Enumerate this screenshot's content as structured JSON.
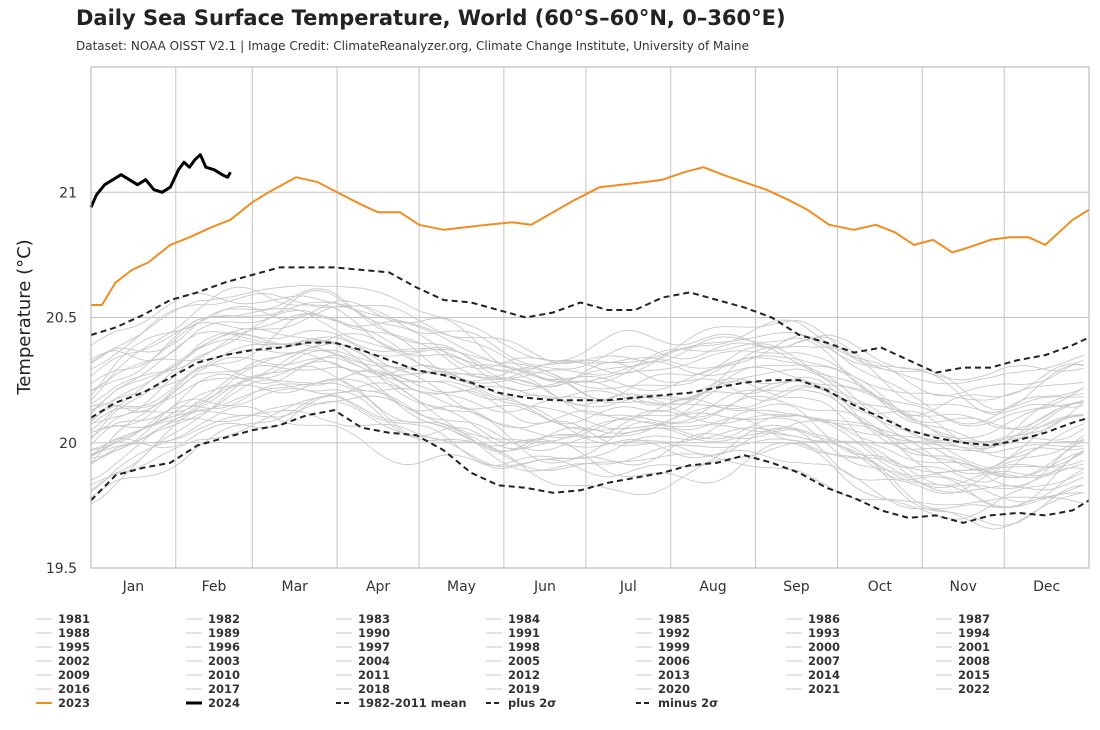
{
  "chart_data": {
    "type": "line",
    "title": "Daily Sea Surface Temperature, World (60°S–60°N, 0–360°E)",
    "subtitle": "Dataset: NOAA OISST V2.1 | Image Credit: ClimateReanalyzer.org, Climate Change Institute, University of Maine",
    "ylabel": "Temperature (°C)",
    "xlabel": "",
    "x_unit": "day of year",
    "xlim": [
      1,
      366
    ],
    "ylim": [
      19.5,
      21.5
    ],
    "yticks": [
      19.5,
      20,
      20.5,
      21
    ],
    "month_labels": [
      "Jan",
      "Feb",
      "Mar",
      "Apr",
      "May",
      "Jun",
      "Jul",
      "Aug",
      "Sep",
      "Oct",
      "Nov",
      "Dec"
    ],
    "grid": true,
    "legend_position": "bottom",
    "colors": {
      "historical": "#c8c8c8",
      "2023": "#f28c1f",
      "2024": "#000000",
      "stats": "#222222",
      "grid": "#c4c4c4"
    },
    "historical_years": [
      "1981",
      "1982",
      "1983",
      "1984",
      "1985",
      "1986",
      "1987",
      "1988",
      "1989",
      "1990",
      "1991",
      "1992",
      "1993",
      "1994",
      "1995",
      "1996",
      "1997",
      "1998",
      "1999",
      "2000",
      "2001",
      "2002",
      "2003",
      "2004",
      "2005",
      "2006",
      "2007",
      "2008",
      "2009",
      "2010",
      "2011",
      "2012",
      "2013",
      "2014",
      "2015",
      "2016",
      "2017",
      "2018",
      "2019",
      "2020",
      "2021",
      "2022"
    ],
    "series": [
      {
        "name": "2023",
        "style": "solid-bold",
        "x": [
          1,
          5,
          10,
          16,
          22,
          30,
          37,
          45,
          52,
          60,
          66,
          76,
          84,
          91,
          100,
          106,
          114,
          121,
          130,
          138,
          146,
          155,
          162,
          170,
          178,
          187,
          195,
          203,
          210,
          218,
          225,
          232,
          240,
          248,
          256,
          263,
          271,
          280,
          288,
          295,
          302,
          309,
          316,
          322,
          330,
          337,
          344,
          350,
          356,
          360,
          366
        ],
        "y": [
          20.55,
          20.55,
          20.64,
          20.69,
          20.72,
          20.79,
          20.82,
          20.86,
          20.89,
          20.96,
          21.0,
          21.06,
          21.04,
          21.0,
          20.95,
          20.92,
          20.92,
          20.87,
          20.85,
          20.86,
          20.87,
          20.88,
          20.87,
          20.92,
          20.97,
          21.02,
          21.03,
          21.04,
          21.05,
          21.08,
          21.1,
          21.07,
          21.04,
          21.01,
          20.97,
          20.93,
          20.87,
          20.85,
          20.87,
          20.84,
          20.79,
          20.81,
          20.76,
          20.78,
          20.81,
          20.82,
          20.82,
          20.79,
          20.85,
          20.89,
          20.93
        ]
      },
      {
        "name": "2024",
        "style": "solid-bold",
        "x": [
          1,
          3,
          6,
          9,
          12,
          15,
          18,
          21,
          24,
          27,
          30,
          33,
          35,
          37,
          39,
          41,
          43,
          46,
          49,
          51,
          52
        ],
        "y": [
          20.94,
          20.99,
          21.03,
          21.05,
          21.07,
          21.05,
          21.03,
          21.05,
          21.01,
          21.0,
          21.02,
          21.09,
          21.12,
          21.1,
          21.13,
          21.15,
          21.1,
          21.09,
          21.07,
          21.06,
          21.08
        ]
      },
      {
        "name": "1982-2011 mean",
        "style": "dashed",
        "x": [
          1,
          10,
          20,
          30,
          40,
          50,
          60,
          70,
          80,
          90,
          100,
          110,
          120,
          130,
          140,
          150,
          160,
          170,
          180,
          190,
          200,
          210,
          220,
          230,
          240,
          250,
          260,
          270,
          280,
          290,
          300,
          310,
          320,
          330,
          340,
          350,
          360,
          366
        ],
        "y": [
          20.1,
          20.16,
          20.2,
          20.26,
          20.32,
          20.35,
          20.37,
          20.38,
          20.4,
          20.4,
          20.37,
          20.33,
          20.29,
          20.27,
          20.24,
          20.2,
          20.18,
          20.17,
          20.17,
          20.17,
          20.18,
          20.19,
          20.2,
          20.22,
          20.24,
          20.25,
          20.25,
          20.21,
          20.15,
          20.1,
          20.05,
          20.02,
          20.0,
          19.99,
          20.01,
          20.04,
          20.08,
          20.1
        ]
      },
      {
        "name": "plus 2σ",
        "style": "dashed",
        "x": [
          1,
          10,
          20,
          30,
          40,
          50,
          60,
          70,
          80,
          90,
          100,
          110,
          120,
          130,
          140,
          150,
          160,
          170,
          180,
          190,
          200,
          210,
          220,
          230,
          240,
          250,
          260,
          270,
          280,
          290,
          300,
          310,
          320,
          330,
          340,
          350,
          360,
          366
        ],
        "y": [
          20.43,
          20.46,
          20.51,
          20.57,
          20.6,
          20.64,
          20.67,
          20.7,
          20.7,
          20.7,
          20.69,
          20.68,
          20.62,
          20.57,
          20.56,
          20.53,
          20.5,
          20.52,
          20.56,
          20.53,
          20.53,
          20.58,
          20.6,
          20.57,
          20.54,
          20.5,
          20.43,
          20.4,
          20.36,
          20.38,
          20.33,
          20.28,
          20.3,
          20.3,
          20.33,
          20.35,
          20.39,
          20.42
        ]
      },
      {
        "name": "minus 2σ",
        "style": "dashed",
        "x": [
          1,
          10,
          20,
          30,
          40,
          50,
          60,
          70,
          80,
          90,
          100,
          110,
          120,
          130,
          140,
          150,
          160,
          170,
          180,
          190,
          200,
          210,
          220,
          230,
          240,
          250,
          260,
          270,
          280,
          290,
          300,
          310,
          320,
          330,
          340,
          350,
          360,
          366
        ],
        "y": [
          19.77,
          19.87,
          19.9,
          19.92,
          19.99,
          20.02,
          20.05,
          20.07,
          20.11,
          20.13,
          20.06,
          20.04,
          20.03,
          19.97,
          19.88,
          19.83,
          19.82,
          19.8,
          19.81,
          19.84,
          19.86,
          19.88,
          19.91,
          19.92,
          19.95,
          19.92,
          19.88,
          19.82,
          19.78,
          19.73,
          19.7,
          19.71,
          19.68,
          19.71,
          19.72,
          19.71,
          19.73,
          19.77
        ]
      }
    ]
  },
  "legend": {
    "rows": [
      [
        "1981",
        "1982",
        "1983",
        "1984",
        "1985",
        "1986",
        "1987"
      ],
      [
        "1988",
        "1989",
        "1990",
        "1991",
        "1992",
        "1993",
        "1994"
      ],
      [
        "1995",
        "1996",
        "1997",
        "1998",
        "1999",
        "2000",
        "2001"
      ],
      [
        "2002",
        "2003",
        "2004",
        "2005",
        "2006",
        "2007",
        "2008"
      ],
      [
        "2009",
        "2010",
        "2011",
        "2012",
        "2013",
        "2014",
        "2015"
      ],
      [
        "2016",
        "2017",
        "2018",
        "2019",
        "2020",
        "2021",
        "2022"
      ],
      [
        "2023",
        "2024",
        "1982-2011 mean",
        "plus 2σ",
        "minus 2σ"
      ]
    ]
  }
}
